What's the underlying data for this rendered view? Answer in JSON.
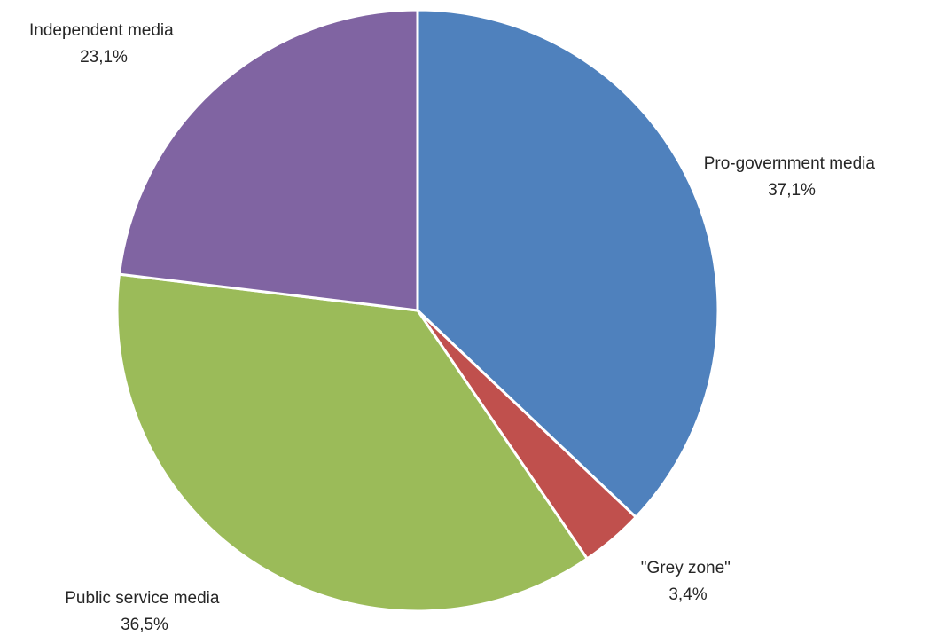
{
  "chart_data": {
    "type": "pie",
    "title": "",
    "legend": "none",
    "start_angle_deg": 0,
    "direction": "clockwise",
    "slices": [
      {
        "label": "Pro-government media",
        "value": 37.1,
        "value_label": "37,1%",
        "color": "#4F81BD"
      },
      {
        "label": "\"Grey zone\"",
        "value": 3.4,
        "value_label": "3,4%",
        "color": "#C0504D"
      },
      {
        "label": "Public service media",
        "value": 36.5,
        "value_label": "36,5%",
        "color": "#9BBB59"
      },
      {
        "label": "Independent media",
        "value": 23.1,
        "value_label": "23,1%",
        "color": "#8064A2"
      }
    ]
  }
}
